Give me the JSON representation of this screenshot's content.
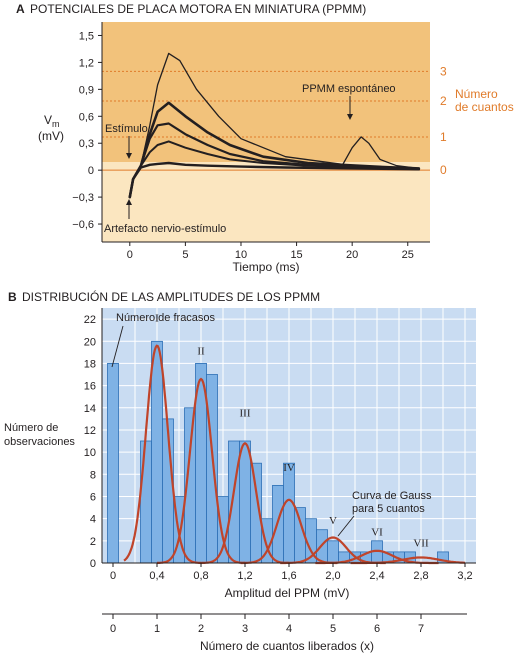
{
  "panel_a": {
    "letter": "A",
    "title": "POTENCIALES DE PLACA MOTORA EN MINIATURA (PPMM)",
    "ylabel_main": "V",
    "ylabel_sub": "m",
    "ylabel_unit": "(mV)",
    "xlabel": "Tiempo (ms)",
    "yticks": [
      "1,5",
      "1,2",
      "0,9",
      "0,6",
      "0,3",
      "0",
      "−0,3",
      "−0,6"
    ],
    "xticks": [
      "0",
      "5",
      "10",
      "15",
      "20",
      "25"
    ],
    "annotations": {
      "estimulo": "Estímulo",
      "artefacto": "Artefacto nervio-estímulo",
      "espontaneo": "PPMM espontáneo"
    },
    "quanta_title_1": "Número",
    "quanta_title_2": "de cuantos",
    "quanta_labels": [
      "3",
      "2",
      "1",
      "0"
    ],
    "colors": {
      "panel_top": "#f2c27b",
      "panel_bottom": "#fbe6c0",
      "orange": "#e07b2a",
      "trace": "#231f20"
    }
  },
  "panel_b": {
    "letter": "B",
    "title": "DISTRIBUCIÓN DE LAS AMPLITUDES DE LOS PPMM",
    "ylabel_1": "Número de",
    "ylabel_2": "observaciones",
    "xlabel": "Amplitud del PPM (mV)",
    "xlabel2": "Número de cuantos liberados (x)",
    "yticks": [
      "22",
      "20",
      "18",
      "16",
      "14",
      "12",
      "10",
      "8",
      "6",
      "4",
      "2",
      "0"
    ],
    "xticks": [
      "0",
      "0,4",
      "0,8",
      "1,2",
      "1,6",
      "2,0",
      "2,4",
      "2,8",
      "3,2"
    ],
    "xticks2": [
      "0",
      "1",
      "2",
      "3",
      "4",
      "5",
      "6",
      "7"
    ],
    "annotations": {
      "fracasos": "Número de fracasos",
      "gauss_1": "Curva de Gauss",
      "gauss_2": "para 5 cuantos"
    },
    "roman_labels": [
      "I",
      "II",
      "III",
      "IV",
      "V",
      "VI",
      "VII"
    ],
    "colors": {
      "background": "#c9dcf2",
      "bar": "#7fb2e5",
      "bar_edge": "#2c6fb5",
      "curve": "#c0442a"
    }
  },
  "chart_data": [
    {
      "type": "line",
      "title": "POTENCIALES DE PLACA MOTORA EN MINIATURA (PPMM)",
      "xlabel": "Tiempo (ms)",
      "ylabel": "Vm (mV)",
      "xlim": [
        -2.5,
        27
      ],
      "ylim": [
        -0.8,
        1.65
      ],
      "quantal_levels_mV": [
        0,
        0.37,
        0.77,
        1.1
      ],
      "series": [
        {
          "x": [
            0,
            0.3,
            1,
            1.8,
            2.5,
            3.5,
            4.5,
            6,
            8,
            10,
            14,
            20,
            26
          ],
          "y": [
            -0.3,
            -0.1,
            0.05,
            0.5,
            0.95,
            1.3,
            1.22,
            0.9,
            0.6,
            0.35,
            0.15,
            0.05,
            0.02
          ]
        },
        {
          "x": [
            0,
            0.3,
            1,
            1.8,
            2.5,
            3.5,
            5,
            7,
            9,
            12,
            16,
            22,
            26
          ],
          "y": [
            -0.3,
            -0.1,
            0.05,
            0.4,
            0.65,
            0.75,
            0.6,
            0.42,
            0.28,
            0.15,
            0.08,
            0.04,
            0.02
          ]
        },
        {
          "x": [
            0,
            0.3,
            1,
            1.8,
            2.5,
            3.5,
            5,
            7,
            9,
            12,
            16,
            22,
            26
          ],
          "y": [
            -0.3,
            -0.1,
            0.05,
            0.35,
            0.5,
            0.52,
            0.4,
            0.28,
            0.18,
            0.1,
            0.06,
            0.03,
            0.01
          ]
        },
        {
          "x": [
            0,
            0.3,
            1,
            1.8,
            2.5,
            3.5,
            5,
            7,
            9,
            12,
            16,
            22,
            26
          ],
          "y": [
            -0.3,
            -0.1,
            0.05,
            0.2,
            0.28,
            0.32,
            0.25,
            0.18,
            0.12,
            0.08,
            0.05,
            0.03,
            0.01
          ]
        },
        {
          "x": [
            0,
            0.3,
            1,
            1.8,
            2.5,
            3.5,
            5,
            7,
            10,
            14,
            20,
            26
          ],
          "y": [
            -0.3,
            -0.1,
            0.03,
            0.06,
            0.07,
            0.08,
            0.06,
            0.05,
            0.04,
            0.03,
            0.02,
            0.01
          ]
        },
        {
          "x": [
            17,
            19,
            20,
            20.8,
            21.5,
            22.5,
            24,
            26
          ],
          "y": [
            0.03,
            0.03,
            0.25,
            0.37,
            0.3,
            0.12,
            0.05,
            0.02
          ]
        }
      ]
    },
    {
      "type": "bar",
      "title": "DISTRIBUCIÓN DE LAS AMPLITUDES DE LOS PPMM",
      "xlabel": "Amplitud del PPM (mV)",
      "ylabel": "Número de observaciones",
      "xlim": [
        -0.1,
        3.3
      ],
      "ylim": [
        0,
        23
      ],
      "bar_width": 0.1,
      "bins_x": [
        0,
        0.3,
        0.4,
        0.5,
        0.6,
        0.7,
        0.8,
        0.9,
        1.0,
        1.1,
        1.2,
        1.3,
        1.4,
        1.5,
        1.6,
        1.7,
        1.8,
        1.9,
        2.0,
        2.1,
        2.2,
        2.3,
        2.4,
        2.5,
        2.6,
        2.7,
        3.0
      ],
      "values": [
        18,
        11,
        20,
        13,
        6,
        14,
        18,
        17,
        6,
        11,
        11,
        9,
        4,
        7,
        9,
        5,
        4,
        3,
        2,
        1,
        1,
        1,
        2,
        1,
        1,
        1,
        1
      ],
      "gaussian_curves": [
        {
          "label": "I",
          "mean": 0.4,
          "peak": 19.6,
          "sd": 0.1
        },
        {
          "label": "II",
          "mean": 0.8,
          "peak": 16.6,
          "sd": 0.1
        },
        {
          "label": "III",
          "mean": 1.2,
          "peak": 10.8,
          "sd": 0.1
        },
        {
          "label": "IV",
          "mean": 1.6,
          "peak": 5.7,
          "sd": 0.11
        },
        {
          "label": "V",
          "mean": 2.0,
          "peak": 2.3,
          "sd": 0.12
        },
        {
          "label": "VI",
          "mean": 2.4,
          "peak": 1.1,
          "sd": 0.14
        },
        {
          "label": "VII",
          "mean": 2.8,
          "peak": 0.5,
          "sd": 0.16
        }
      ],
      "secondary_axis": {
        "label": "Número de cuantos liberados (x)",
        "ticks": [
          0,
          1,
          2,
          3,
          4,
          5,
          6,
          7
        ],
        "mV_per_quantum": 0.4
      }
    }
  ]
}
